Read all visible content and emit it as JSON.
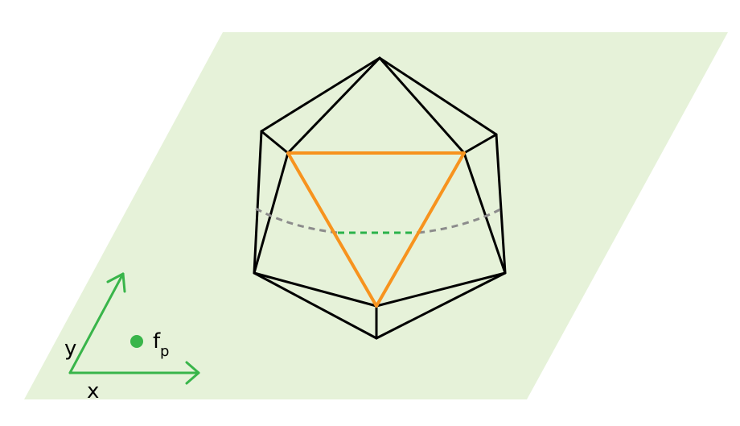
{
  "colors": {
    "background": "#ffffff",
    "plane_fill": "#e6f2d9",
    "edge_stroke": "#000000",
    "highlight_stroke": "#f7931e",
    "hidden_gray": "#8c8c8c",
    "hidden_green": "#2bb34a",
    "axis_green": "#39b54a",
    "point_green": "#39b54a",
    "text": "#000000"
  },
  "labels": {
    "x_axis": "x",
    "y_axis": "y",
    "point": "f",
    "point_subscript": "p"
  },
  "icons": {
    "point": "filled-circle-icon",
    "axis_arrows": "arrow-icon"
  }
}
